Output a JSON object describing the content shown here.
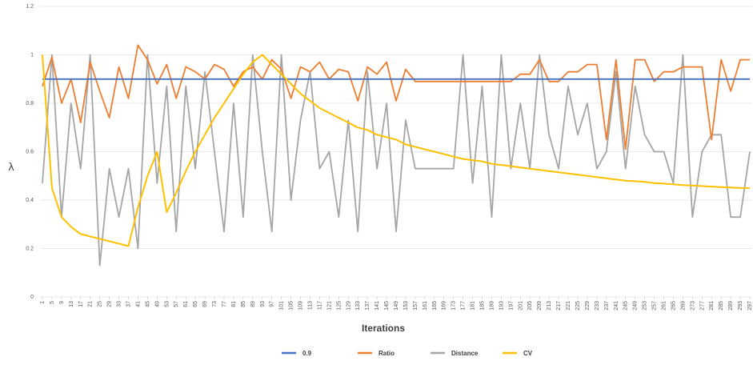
{
  "chart_data": {
    "type": "line",
    "y_label": "λ",
    "x_label": "Iterations",
    "x": [
      1,
      5,
      9,
      13,
      17,
      21,
      25,
      29,
      33,
      37,
      41,
      45,
      49,
      53,
      57,
      61,
      65,
      69,
      73,
      77,
      81,
      85,
      89,
      93,
      97,
      101,
      105,
      109,
      113,
      117,
      121,
      125,
      129,
      133,
      137,
      141,
      145,
      149,
      153,
      157,
      161,
      165,
      169,
      173,
      177,
      181,
      185,
      189,
      193,
      197,
      201,
      205,
      209,
      213,
      217,
      221,
      225,
      229,
      233,
      237,
      241,
      245,
      249,
      253,
      257,
      261,
      265,
      269,
      273,
      277,
      281,
      285,
      289,
      293,
      297
    ],
    "xticks": [
      1,
      5,
      9,
      13,
      17,
      21,
      25,
      29,
      33,
      37,
      41,
      45,
      49,
      53,
      57,
      61,
      65,
      69,
      73,
      77,
      81,
      85,
      89,
      93,
      97,
      101,
      105,
      109,
      113,
      117,
      121,
      125,
      129,
      133,
      137,
      141,
      145,
      149,
      153,
      157,
      161,
      165,
      169,
      173,
      177,
      181,
      185,
      189,
      193,
      197,
      201,
      205,
      209,
      213,
      217,
      221,
      225,
      229,
      233,
      237,
      241,
      245,
      249,
      253,
      257,
      261,
      265,
      269,
      273,
      277,
      281,
      285,
      289,
      293,
      297
    ],
    "xlim": [
      0,
      298
    ],
    "ylim": [
      0,
      1.2
    ],
    "yticks": [
      0,
      0.2,
      0.4,
      0.6,
      0.8,
      1,
      1.2
    ],
    "grid": true,
    "legend": "bottom",
    "series": [
      {
        "name": "0.9",
        "color": "#4472c4",
        "values": [
          0.9,
          0.9,
          0.9,
          0.9,
          0.9,
          0.9,
          0.9,
          0.9,
          0.9,
          0.9,
          0.9,
          0.9,
          0.9,
          0.9,
          0.9,
          0.9,
          0.9,
          0.9,
          0.9,
          0.9,
          0.9,
          0.9,
          0.9,
          0.9,
          0.9,
          0.9,
          0.9,
          0.9,
          0.9,
          0.9,
          0.9,
          0.9,
          0.9,
          0.9,
          0.9,
          0.9,
          0.9,
          0.9,
          0.9,
          0.9,
          0.9,
          0.9,
          0.9,
          0.9,
          0.9,
          0.9,
          0.9,
          0.9,
          0.9,
          0.9,
          0.9,
          0.9,
          0.9,
          0.9,
          0.9,
          0.9,
          0.9,
          0.9,
          0.9,
          0.9,
          0.9,
          0.9,
          0.9,
          0.9,
          0.9,
          0.9,
          0.9,
          0.9,
          0.9,
          0.9,
          0.9,
          0.9,
          0.9,
          0.9,
          0.9
        ]
      },
      {
        "name": "Ratio",
        "color": "#ed7d31",
        "values": [
          0.87,
          0.99,
          0.8,
          0.9,
          0.72,
          0.97,
          0.85,
          0.74,
          0.95,
          0.82,
          1.04,
          0.98,
          0.88,
          0.96,
          0.82,
          0.95,
          0.93,
          0.9,
          0.96,
          0.94,
          0.87,
          0.93,
          0.95,
          0.9,
          0.98,
          0.94,
          0.82,
          0.95,
          0.93,
          0.97,
          0.9,
          0.94,
          0.93,
          0.81,
          0.95,
          0.92,
          0.97,
          0.81,
          0.94,
          0.89,
          0.89,
          0.89,
          0.89,
          0.89,
          0.89,
          0.89,
          0.89,
          0.89,
          0.89,
          0.89,
          0.92,
          0.92,
          0.98,
          0.89,
          0.89,
          0.93,
          0.93,
          0.96,
          0.96,
          0.65,
          0.98,
          0.61,
          0.98,
          0.98,
          0.89,
          0.93,
          0.93,
          0.95,
          0.95,
          0.95,
          0.65,
          0.98,
          0.85,
          0.98,
          0.98
        ]
      },
      {
        "name": "Distance",
        "color": "#a5a5a5",
        "values": [
          0.47,
          1.0,
          0.33,
          0.8,
          0.53,
          1.0,
          0.13,
          0.53,
          0.33,
          0.53,
          0.2,
          1.0,
          0.47,
          0.87,
          0.27,
          0.87,
          0.53,
          0.93,
          0.6,
          0.27,
          0.8,
          0.33,
          1.0,
          0.6,
          0.27,
          1.0,
          0.4,
          0.73,
          0.93,
          0.53,
          0.6,
          0.33,
          0.73,
          0.27,
          0.93,
          0.53,
          0.8,
          0.27,
          0.73,
          0.53,
          0.53,
          0.53,
          0.53,
          0.53,
          1.0,
          0.47,
          0.87,
          0.33,
          1.0,
          0.53,
          0.8,
          0.53,
          1.0,
          0.67,
          0.53,
          0.87,
          0.67,
          0.8,
          0.53,
          0.6,
          0.93,
          0.53,
          0.87,
          0.67,
          0.6,
          0.6,
          0.47,
          1.0,
          0.33,
          0.6,
          0.67,
          0.67,
          0.33,
          0.33,
          0.6
        ]
      },
      {
        "name": "CV",
        "color": "#ffc000",
        "values": [
          1.0,
          0.45,
          0.33,
          0.29,
          0.26,
          0.25,
          0.24,
          0.23,
          0.22,
          0.21,
          0.37,
          0.5,
          0.6,
          0.35,
          0.43,
          0.52,
          0.6,
          0.67,
          0.74,
          0.8,
          0.86,
          0.92,
          0.97,
          1.0,
          0.96,
          0.92,
          0.88,
          0.84,
          0.81,
          0.78,
          0.76,
          0.74,
          0.72,
          0.7,
          0.69,
          0.67,
          0.66,
          0.65,
          0.63,
          0.62,
          0.61,
          0.6,
          0.59,
          0.58,
          0.57,
          0.565,
          0.56,
          0.55,
          0.545,
          0.54,
          0.535,
          0.53,
          0.525,
          0.52,
          0.515,
          0.51,
          0.505,
          0.5,
          0.495,
          0.49,
          0.485,
          0.48,
          0.478,
          0.475,
          0.47,
          0.468,
          0.465,
          0.462,
          0.46,
          0.458,
          0.456,
          0.454,
          0.452,
          0.45,
          0.45
        ]
      }
    ]
  }
}
